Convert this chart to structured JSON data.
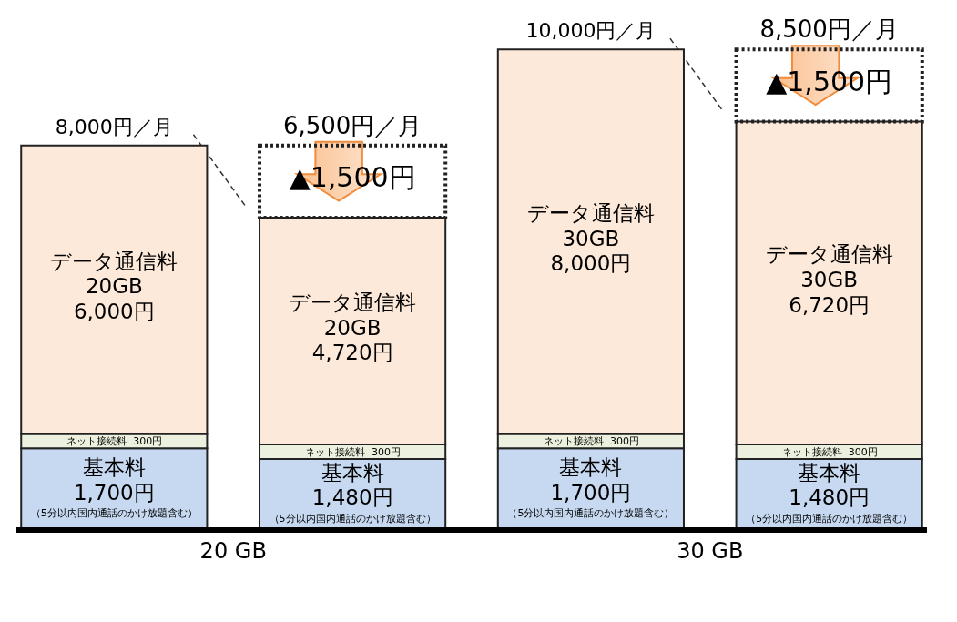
{
  "chart_data": {
    "type": "bar",
    "stacked": true,
    "categories": [
      null,
      null,
      null,
      null
    ],
    "series": [
      {
        "name": "基本料",
        "color": "#c6d9f1",
        "values": [
          1700,
          1480,
          1700,
          1480
        ],
        "value_labels": [
          "1,700円",
          "1,480円",
          "1,700円",
          "1,480円"
        ]
      },
      {
        "name": "ネット接続料",
        "color": "#ebf1de",
        "values": [
          300,
          300,
          300,
          300
        ],
        "value_labels": [
          "300円",
          "300円",
          "300円",
          "300円"
        ]
      },
      {
        "name": "データ通信料",
        "color": "#fde9d9",
        "values": [
          6000,
          4720,
          8000,
          6720
        ],
        "value_labels": [
          "20GB\n6,000円",
          "20GB\n4,720円",
          "30GB\n8,000円",
          "30GB\n6,720円"
        ]
      },
      {
        "line_style": "dotted",
        "values": [
          null,
          1500,
          null,
          1500
        ],
        "value_labels": [
          null,
          "▲1,500円",
          null,
          "▲1,500円"
        ]
      }
    ],
    "annotations": [
      "8,000円／月",
      "6,500円／月",
      "10,000円／月",
      "8,500円／月",
      "20 GB",
      "30 GB",
      "（5分以内国内通話のかけ放題含む）",
      "（5分以内国内通話のかけ放題含む）",
      "（5分以内国内通話のかけ放題含む）",
      "（5分以内国内通話のかけ放題含む）"
    ]
  }
}
